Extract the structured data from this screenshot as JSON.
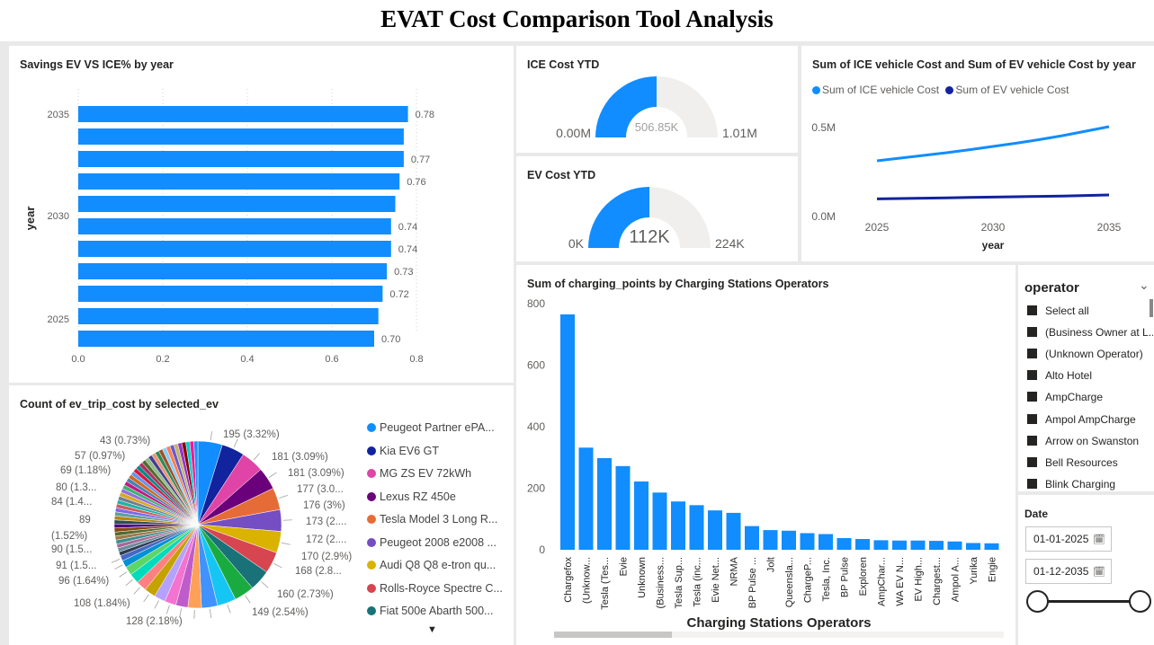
{
  "page_title": "EVAT Cost Comparison Tool Analysis",
  "savings_chart": {
    "title": "Savings EV VS ICE% by year",
    "y_axis_title": "year",
    "y_ticks": [
      "2035",
      "2030",
      "2025"
    ],
    "x_ticks": [
      "0.0",
      "0.2",
      "0.4",
      "0.6",
      "0.8"
    ]
  },
  "ice_gauge": {
    "title": "ICE Cost YTD",
    "value_label": "506.85K",
    "min_label": "0.00M",
    "max_label": "1.01M",
    "fraction": 0.5
  },
  "ev_gauge": {
    "title": "EV Cost YTD",
    "value_label": "112K",
    "min_label": "0K",
    "max_label": "224K",
    "fraction": 0.5
  },
  "line_chart": {
    "title": "Sum of ICE vehicle Cost and Sum of EV vehicle Cost by year",
    "legend": [
      {
        "name": "Sum of ICE vehicle Cost",
        "color": "#118dff"
      },
      {
        "name": "Sum of EV vehicle Cost",
        "color": "#12239e"
      }
    ],
    "y_ticks": [
      "0.5M",
      "0.0M"
    ],
    "x_ticks": [
      "2025",
      "2030",
      "2035"
    ],
    "x_axis_title": "year"
  },
  "pie_chart": {
    "title": "Count of ev_trip_cost by selected_ev",
    "legend": [
      {
        "name": "Peugeot Partner  ePA...",
        "color": "#118dff"
      },
      {
        "name": "Kia EV6 GT",
        "color": "#12239e"
      },
      {
        "name": "MG ZS EV 72kWh",
        "color": "#e044a7"
      },
      {
        "name": "Lexus RZ 450e",
        "color": "#6b007b"
      },
      {
        "name": "Tesla Model 3 Long R...",
        "color": "#e66c37"
      },
      {
        "name": "Peugeot 2008 e2008 ...",
        "color": "#744ec2"
      },
      {
        "name": "Audi Q8 Q8 e-tron qu...",
        "color": "#d9b300"
      },
      {
        "name": "Rolls-Royce Spectre C...",
        "color": "#d64550"
      },
      {
        "name": "Fiat 500e Abarth 500...",
        "color": "#197278"
      }
    ],
    "labels": [
      "195 (3.32%)",
      "181 (3.09%)",
      "181 (3.09%)",
      "177 (3.0...",
      "176 (3%)",
      "173 (2....",
      "172 (2....",
      "170 (2.9%)",
      "168 (2.8...",
      "160 (2.73%)",
      "149 (2.54%)",
      "128 (2.18%)",
      "108 (1.84%)",
      "96 (1.64%)",
      "91 (1.5...",
      "90 (1.5...",
      "89",
      "(1.52%)",
      "84 (1.4...",
      "80 (1.3...",
      "69 (1.18%)",
      "57 (0.97%)",
      "43 (0.73%)"
    ],
    "more_icon": "caret-down-icon"
  },
  "operators_chart": {
    "title": "Sum of charging_points by Charging Stations Operators",
    "x_axis_title": "Charging Stations Operators",
    "y_ticks": [
      "800",
      "600",
      "400",
      "200",
      "0"
    ]
  },
  "operator_slicer": {
    "title": "operator",
    "items": [
      "Select all",
      "(Business Owner at L...",
      "(Unknown Operator)",
      "Alto Hotel",
      "AmpCharge",
      "Ampol AmpCharge",
      "Arrow on Swanston",
      "Bell Resources",
      "Blink Charging"
    ]
  },
  "date_slicer": {
    "title": "Date",
    "start": "01-01-2025",
    "end": "01-12-2035"
  },
  "chart_data": [
    {
      "type": "bar",
      "title": "Savings EV VS ICE% by year",
      "orientation": "horizontal",
      "categories": [
        2035,
        2034,
        2033,
        2032,
        2031,
        2030,
        2029,
        2028,
        2027,
        2026,
        2025
      ],
      "values": [
        0.78,
        0.77,
        0.77,
        0.76,
        0.75,
        0.74,
        0.74,
        0.73,
        0.72,
        0.71,
        0.7
      ],
      "data_labels": [
        "0.78",
        "",
        "0.77",
        "0.76",
        "",
        "0.74",
        "0.74",
        "0.73",
        "0.72",
        "",
        "0.70"
      ],
      "ylabel": "year",
      "xlim": [
        0,
        0.8
      ]
    },
    {
      "type": "line",
      "title": "Sum of ICE vehicle Cost and Sum of EV vehicle Cost by year",
      "x": [
        2025,
        2026,
        2027,
        2028,
        2029,
        2030,
        2031,
        2032,
        2033,
        2034,
        2035
      ],
      "series": [
        {
          "name": "Sum of ICE vehicle Cost",
          "values": [
            310000,
            325000,
            340000,
            355000,
            372000,
            390000,
            408000,
            428000,
            450000,
            475000,
            500000
          ]
        },
        {
          "name": "Sum of EV vehicle Cost",
          "values": [
            98000,
            100000,
            102000,
            104000,
            106000,
            108000,
            110000,
            112000,
            114000,
            117000,
            120000
          ]
        }
      ],
      "xlabel": "year",
      "ylim": [
        0,
        600000
      ]
    },
    {
      "type": "bar",
      "title": "Sum of charging_points by Charging Stations Operators",
      "categories": [
        "Chargefox",
        "(Unknow...",
        "Tesla (Tes...",
        "Evie",
        "Unknown",
        "(Business...",
        "Tesla Sup...",
        "Tesla (inc...",
        "Evie Net...",
        "NRMA",
        "BP Pulse ...",
        "Jolt",
        "Queensla...",
        "ChargeP...",
        "Tesla, Inc.",
        "BP Pulse",
        "Exploren",
        "AmpChar...",
        "WA EV N...",
        "EV High...",
        "Chargest...",
        "Ampol A...",
        "Yurika",
        "Engie"
      ],
      "values": [
        765,
        332,
        298,
        272,
        222,
        186,
        157,
        145,
        128,
        120,
        77,
        64,
        62,
        54,
        51,
        38,
        35,
        31,
        30,
        30,
        29,
        27,
        22,
        21
      ],
      "xlabel": "Charging Stations Operators",
      "ylim": [
        0,
        800
      ]
    },
    {
      "type": "pie",
      "title": "Count of ev_trip_cost by selected_ev",
      "slices": [
        195,
        181,
        181,
        177,
        176,
        173,
        172,
        170,
        168,
        160,
        149,
        128,
        108,
        96,
        91,
        90,
        89,
        84,
        80,
        69,
        57,
        43
      ],
      "labels": [
        "195 (3.32%)",
        "181 (3.09%)",
        "181 (3.09%)",
        "177 (3.0...",
        "176 (3%)",
        "173 (2....",
        "172 (2....",
        "170 (2.9%)",
        "168 (2.8...",
        "160 (2.73%)",
        "149 (2.54%)",
        "128 (2.18%)",
        "108 (1.84%)",
        "96 (1.64%)",
        "91 (1.5...",
        "90 (1.5...",
        "89 (1.52%)",
        "84 (1.4...",
        "80 (1.3...",
        "69 (1.18%)",
        "57 (0.97%)",
        "43 (0.73%)"
      ]
    }
  ]
}
